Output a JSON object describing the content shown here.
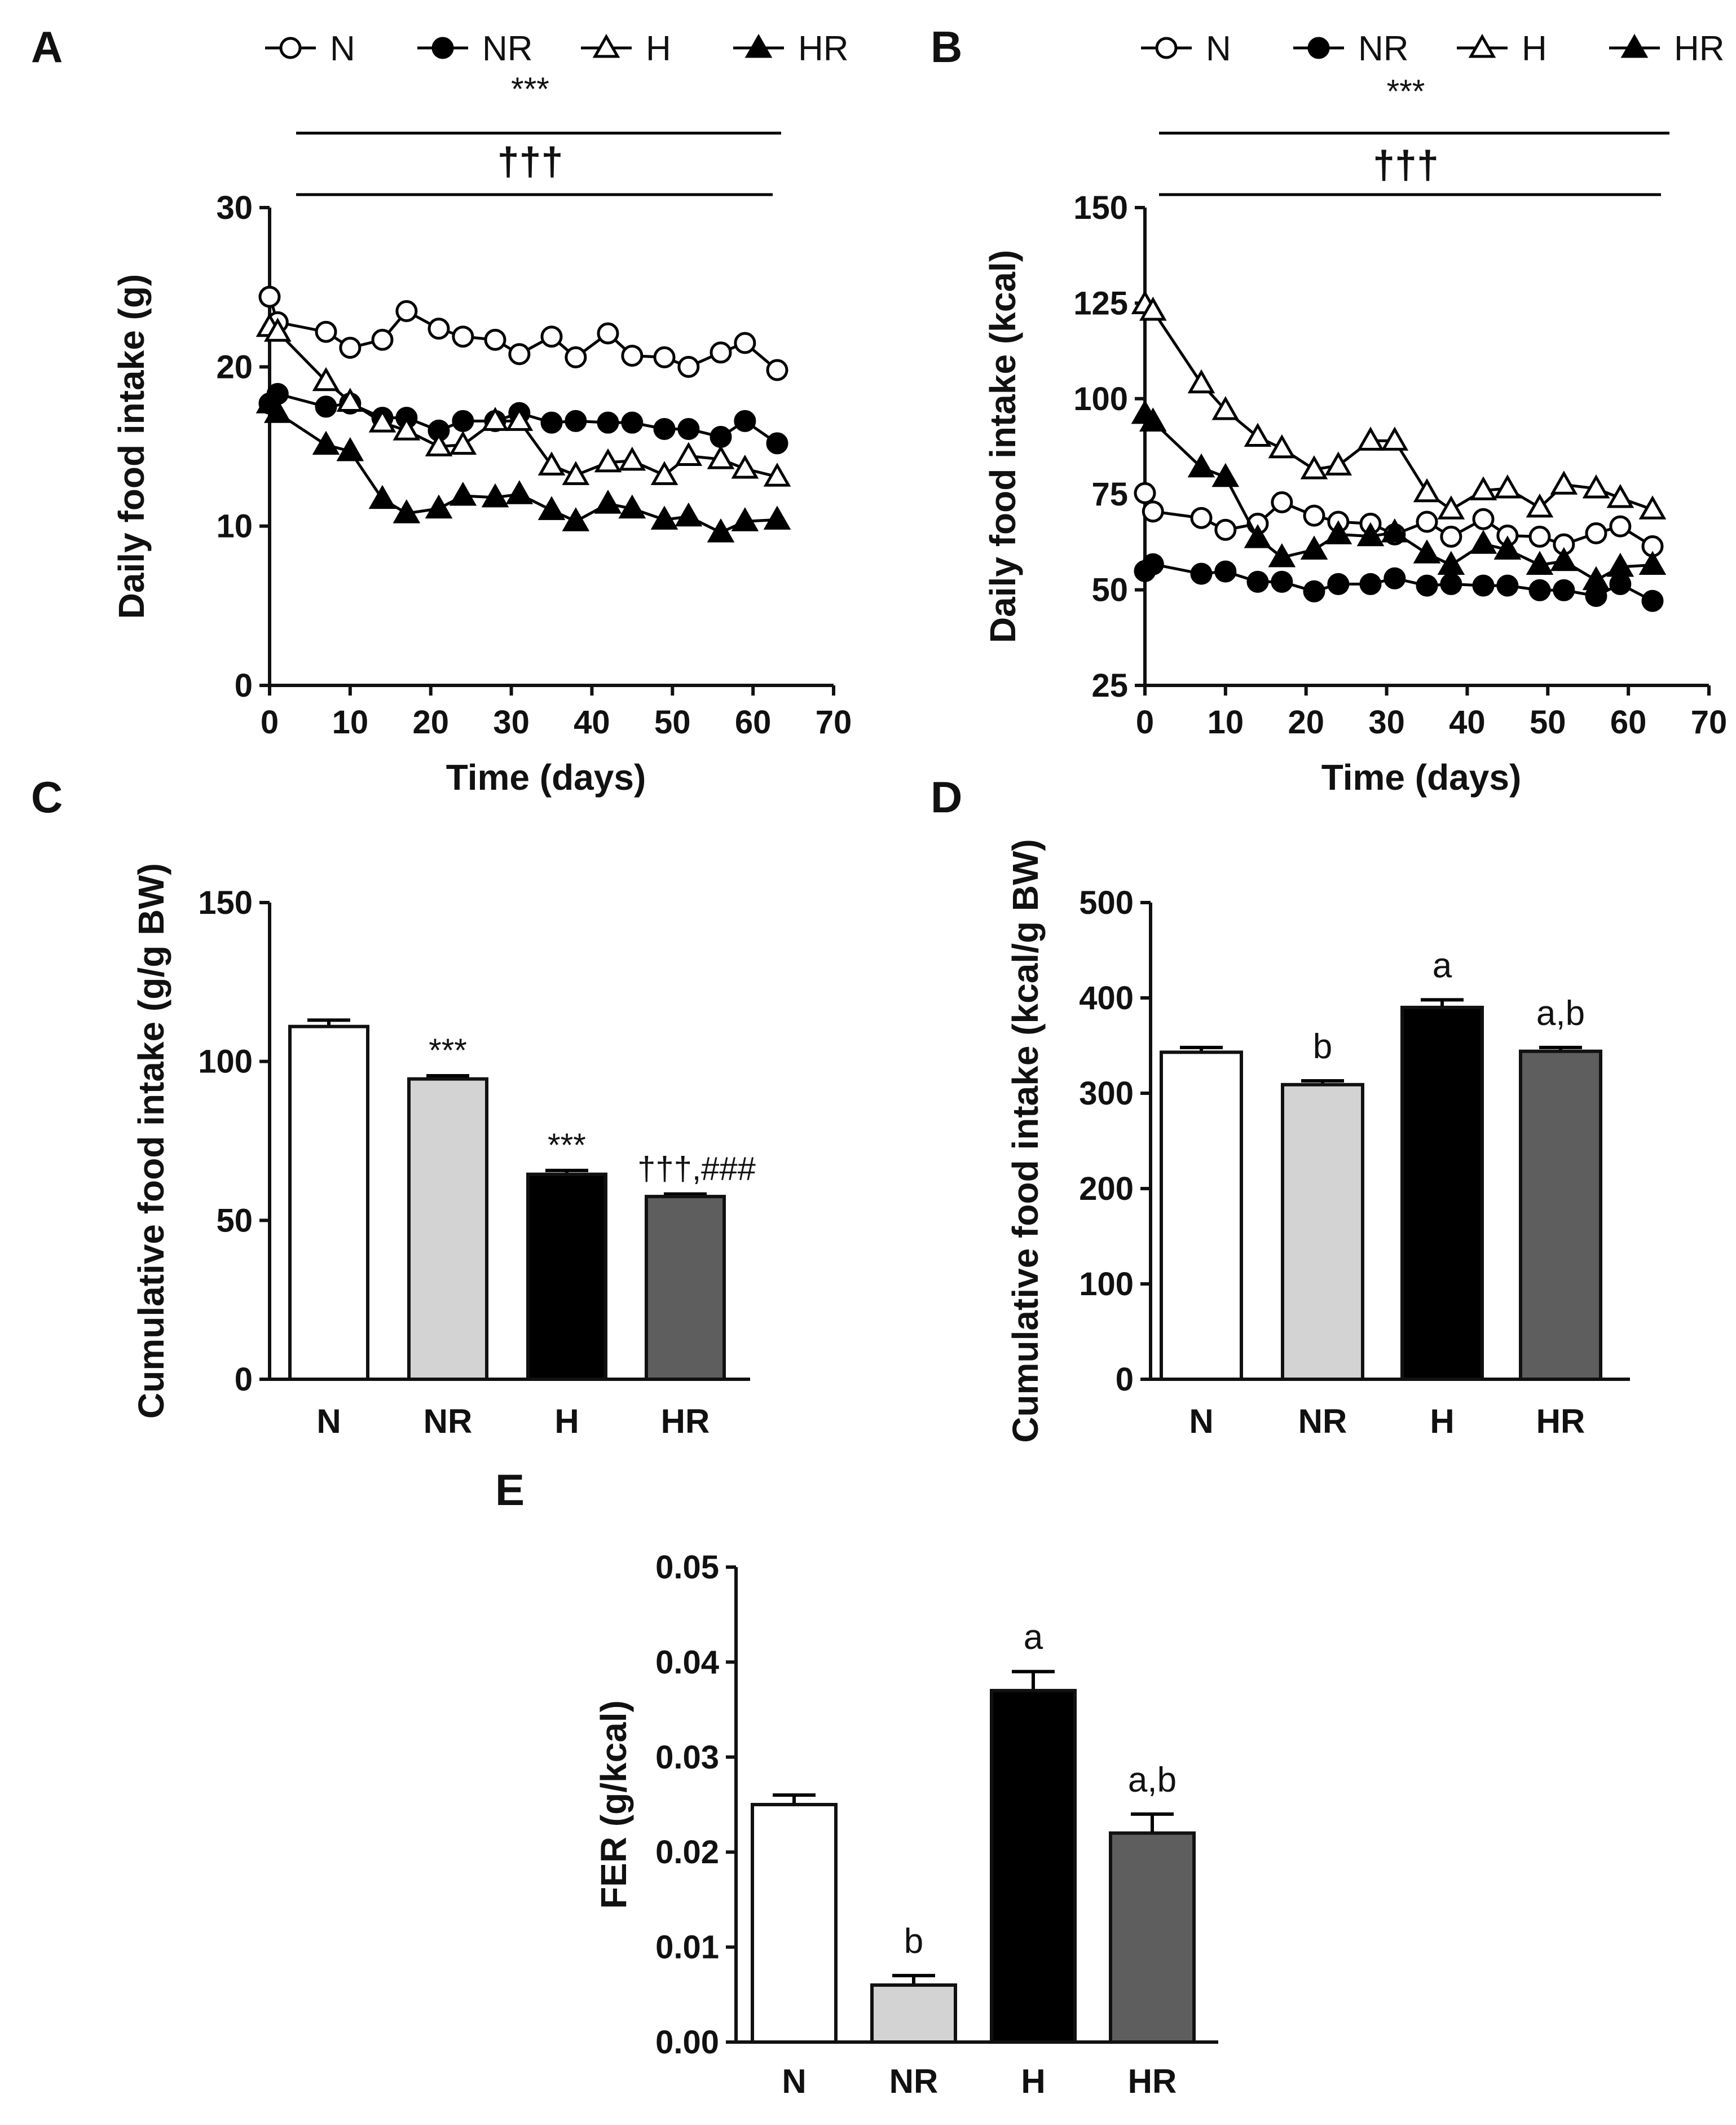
{
  "legend": {
    "series": [
      "N",
      "NR",
      "H",
      "HR"
    ]
  },
  "colors": {
    "N": "#ffffff",
    "NR": "#d3d3d3",
    "H": "#000000",
    "HR": "#5e5e5e",
    "stroke": "#111111"
  },
  "chart_data": [
    {
      "id": "A",
      "panel_label": "A",
      "type": "line",
      "xlabel": "Time (days)",
      "ylabel": "Daily food intake (g)",
      "xlim": [
        0,
        70
      ],
      "ylim": [
        0,
        30
      ],
      "xticks": [
        0,
        10,
        20,
        30,
        40,
        50,
        60,
        70
      ],
      "yticks": [
        0,
        10,
        20,
        30
      ],
      "significance": [
        "***",
        "†††"
      ],
      "x": [
        0,
        1,
        7,
        10,
        14,
        17,
        21,
        24,
        28,
        31,
        35,
        38,
        42,
        45,
        49,
        52,
        56,
        59,
        63
      ],
      "series": [
        {
          "name": "N",
          "marker": "circle-open",
          "values": [
            24.4,
            22.8,
            22.2,
            21.2,
            21.7,
            23.5,
            22.4,
            21.9,
            21.7,
            20.8,
            21.9,
            20.6,
            22.1,
            20.7,
            20.6,
            20.0,
            20.9,
            21.5,
            19.8
          ]
        },
        {
          "name": "NR",
          "marker": "circle-filled",
          "values": [
            17.7,
            18.3,
            17.5,
            17.7,
            16.8,
            16.8,
            16.0,
            16.6,
            16.6,
            17.1,
            16.5,
            16.6,
            16.5,
            16.5,
            16.1,
            16.1,
            15.6,
            16.6,
            15.2
          ]
        },
        {
          "name": "H",
          "marker": "triangle-open",
          "values": [
            22.5,
            22.2,
            19.1,
            17.8,
            16.5,
            16.0,
            15.0,
            15.1,
            16.6,
            16.6,
            13.8,
            13.2,
            14.0,
            14.1,
            13.2,
            14.4,
            14.2,
            13.6,
            13.1
          ]
        },
        {
          "name": "HR",
          "marker": "triangle-filled",
          "values": [
            17.7,
            17.1,
            15.1,
            14.7,
            11.7,
            10.8,
            11.1,
            11.9,
            11.8,
            12.0,
            11.0,
            10.3,
            11.4,
            11.1,
            10.4,
            10.6,
            9.6,
            10.3,
            10.4
          ]
        }
      ]
    },
    {
      "id": "B",
      "panel_label": "B",
      "type": "line",
      "xlabel": "Time (days)",
      "ylabel": "Daily food intake (kcal)",
      "xlim": [
        0,
        70
      ],
      "ylim": [
        25,
        150
      ],
      "xticks": [
        0,
        10,
        20,
        30,
        40,
        50,
        60,
        70
      ],
      "yticks": [
        25,
        50,
        75,
        100,
        125,
        150
      ],
      "significance": [
        "***",
        "†††"
      ],
      "x": [
        0,
        1,
        7,
        10,
        14,
        17,
        21,
        24,
        28,
        31,
        35,
        38,
        42,
        45,
        49,
        52,
        56,
        59,
        63
      ],
      "series": [
        {
          "name": "N",
          "marker": "circle-open",
          "values": [
            75.3,
            70.5,
            68.8,
            65.7,
            67.3,
            72.9,
            69.4,
            67.8,
            67.3,
            64.5,
            67.8,
            63.9,
            68.5,
            64.2,
            63.9,
            61.9,
            64.8,
            66.6,
            61.4
          ]
        },
        {
          "name": "NR",
          "marker": "circle-filled",
          "values": [
            54.9,
            56.7,
            54.2,
            54.8,
            52.1,
            52.1,
            49.6,
            51.5,
            51.5,
            53.0,
            51.1,
            51.5,
            51.1,
            51.1,
            49.9,
            49.9,
            48.4,
            51.5,
            47.1
          ]
        },
        {
          "name": "H",
          "marker": "triangle-open",
          "values": [
            124.7,
            123.0,
            104.0,
            97.0,
            90.0,
            87.0,
            81.5,
            82.5,
            89.0,
            89.0,
            75.5,
            71.0,
            76.0,
            76.5,
            71.5,
            77.5,
            76.5,
            74.0,
            71.0
          ]
        },
        {
          "name": "HR",
          "marker": "triangle-filled",
          "values": [
            96.0,
            94.0,
            82.0,
            79.5,
            63.5,
            58.5,
            60.5,
            64.5,
            64.0,
            65.0,
            59.5,
            56.5,
            62.0,
            60.5,
            56.5,
            57.5,
            52.5,
            56.0,
            56.5
          ]
        }
      ]
    },
    {
      "id": "C",
      "panel_label": "C",
      "type": "bar",
      "ylabel": "Cumulative food intake (g/g BW)",
      "ylim": [
        0,
        150
      ],
      "yticks": [
        0,
        50,
        100,
        150
      ],
      "categories": [
        "N",
        "NR",
        "H",
        "HR"
      ],
      "values": [
        111,
        94.5,
        64.5,
        57.5
      ],
      "errors": [
        2.0,
        1.0,
        1.2,
        0.8
      ],
      "annotations": [
        "",
        "***",
        "***",
        "†††,###"
      ]
    },
    {
      "id": "D",
      "panel_label": "D",
      "type": "bar",
      "ylabel": "Cumulative food intake (kcal/g BW)",
      "ylim": [
        0,
        500
      ],
      "yticks": [
        0,
        100,
        200,
        300,
        400,
        500
      ],
      "categories": [
        "N",
        "NR",
        "H",
        "HR"
      ],
      "values": [
        343,
        309,
        390,
        344
      ],
      "errors": [
        5,
        4,
        8,
        4
      ],
      "annotations": [
        "",
        "b",
        "a",
        "a,b"
      ]
    },
    {
      "id": "E",
      "panel_label": "E",
      "type": "bar",
      "ylabel": "FER (g/kcal)",
      "ylim": [
        0,
        0.05
      ],
      "yticks": [
        0.0,
        0.01,
        0.02,
        0.03,
        0.04,
        0.05
      ],
      "ytick_labels": [
        "0.00",
        "0.01",
        "0.02",
        "0.03",
        "0.04",
        "0.05"
      ],
      "categories": [
        "N",
        "NR",
        "H",
        "HR"
      ],
      "values": [
        0.025,
        0.006,
        0.037,
        0.022
      ],
      "errors": [
        0.001,
        0.001,
        0.002,
        0.002
      ],
      "annotations": [
        "",
        "b",
        "a",
        "a,b"
      ]
    }
  ]
}
